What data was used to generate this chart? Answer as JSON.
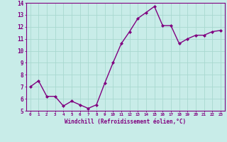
{
  "x": [
    0,
    1,
    2,
    3,
    4,
    5,
    6,
    7,
    8,
    9,
    10,
    11,
    12,
    13,
    14,
    15,
    16,
    17,
    18,
    19,
    20,
    21,
    22,
    23
  ],
  "y": [
    7.0,
    7.5,
    6.2,
    6.2,
    5.4,
    5.8,
    5.5,
    5.2,
    5.5,
    7.3,
    9.0,
    10.6,
    11.6,
    12.7,
    13.2,
    13.7,
    12.1,
    12.1,
    10.6,
    11.0,
    11.3,
    11.3,
    11.6,
    11.7
  ],
  "line_color": "#800080",
  "marker": "D",
  "marker_size": 2.0,
  "bg_color": "#c8ece8",
  "grid_color": "#a8d8d0",
  "xlabel": "Windchill (Refroidissement éolien,°C)",
  "xlabel_color": "#800080",
  "tick_color": "#800080",
  "ylim": [
    5,
    14
  ],
  "xlim": [
    -0.5,
    23.5
  ],
  "yticks": [
    5,
    6,
    7,
    8,
    9,
    10,
    11,
    12,
    13,
    14
  ],
  "xticks": [
    0,
    1,
    2,
    3,
    4,
    5,
    6,
    7,
    8,
    9,
    10,
    11,
    12,
    13,
    14,
    15,
    16,
    17,
    18,
    19,
    20,
    21,
    22,
    23
  ],
  "xtick_labels": [
    "0",
    "1",
    "2",
    "3",
    "4",
    "5",
    "6",
    "7",
    "8",
    "9",
    "10",
    "11",
    "12",
    "13",
    "14",
    "15",
    "16",
    "17",
    "18",
    "19",
    "20",
    "21",
    "22",
    "23"
  ],
  "spine_color": "#800080",
  "linewidth": 1.0
}
